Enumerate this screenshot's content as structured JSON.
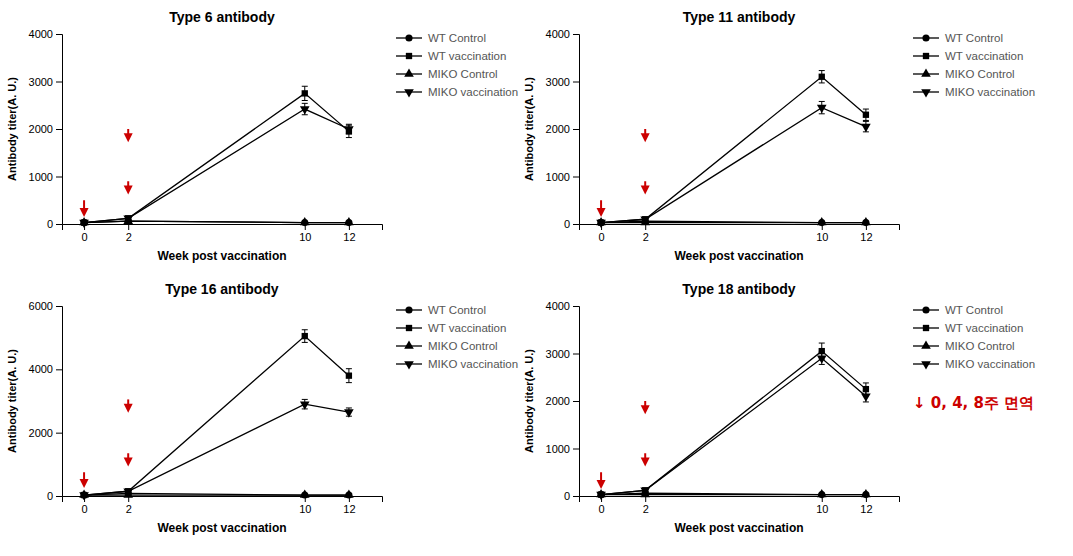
{
  "chart_data": [
    {
      "type": "line",
      "title": "Type 6 antibody",
      "xlabel": "Week post vaccination",
      "ylabel": "Antibody titer(A. U.)",
      "x": [
        0,
        2,
        10,
        12
      ],
      "xlim": [
        -1.0,
        13.5
      ],
      "xticks": [
        0,
        2,
        10,
        12
      ],
      "ylim": [
        0,
        4000
      ],
      "yticks": [
        0,
        1000,
        2000,
        3000,
        4000
      ],
      "grid": false,
      "legend": "right",
      "series": [
        {
          "name": "WT Control",
          "marker": "circle",
          "color": "#000000",
          "values": [
            30,
            60,
            30,
            30
          ],
          "errors": [
            15,
            15,
            15,
            15
          ]
        },
        {
          "name": "WT vaccination",
          "marker": "square",
          "color": "#000000",
          "values": [
            30,
            120,
            2750,
            1950
          ],
          "errors": [
            15,
            25,
            150,
            130
          ]
        },
        {
          "name": "MIKO Control",
          "marker": "triangle-up",
          "color": "#000000",
          "values": [
            30,
            60,
            30,
            30
          ],
          "errors": [
            15,
            15,
            15,
            15
          ]
        },
        {
          "name": "MIKO vaccination",
          "marker": "triangle-down",
          "color": "#000000",
          "values": [
            30,
            120,
            2420,
            2000
          ],
          "errors": [
            15,
            25,
            120,
            100
          ]
        }
      ],
      "arrows": {
        "x": [
          0,
          2,
          2
        ],
        "y": [
          500,
          900,
          2000
        ],
        "size": [
          350,
          280,
          280
        ],
        "color": "#cc0000"
      }
    },
    {
      "type": "line",
      "title": "Type 11 antibody",
      "xlabel": "Week post vaccination",
      "ylabel": "Antibody titer(A. U.)",
      "x": [
        0,
        2,
        10,
        12
      ],
      "xlim": [
        -1.0,
        13.5
      ],
      "xticks": [
        0,
        2,
        10,
        12
      ],
      "ylim": [
        0,
        4000
      ],
      "yticks": [
        0,
        1000,
        2000,
        3000,
        4000
      ],
      "grid": false,
      "legend": "right",
      "series": [
        {
          "name": "WT Control",
          "marker": "circle",
          "color": "#000000",
          "values": [
            30,
            60,
            30,
            30
          ],
          "errors": [
            15,
            15,
            15,
            15
          ]
        },
        {
          "name": "WT vaccination",
          "marker": "square",
          "color": "#000000",
          "values": [
            30,
            100,
            3100,
            2300
          ],
          "errors": [
            15,
            25,
            130,
            120
          ]
        },
        {
          "name": "MIKO Control",
          "marker": "triangle-up",
          "color": "#000000",
          "values": [
            30,
            30,
            30,
            30
          ],
          "errors": [
            15,
            15,
            15,
            15
          ]
        },
        {
          "name": "MIKO vaccination",
          "marker": "triangle-down",
          "color": "#000000",
          "values": [
            30,
            100,
            2450,
            2050
          ],
          "errors": [
            15,
            25,
            130,
            110
          ]
        }
      ],
      "arrows": {
        "x": [
          0,
          2,
          2
        ],
        "y": [
          500,
          900,
          2000
        ],
        "size": [
          350,
          280,
          280
        ],
        "color": "#cc0000"
      }
    },
    {
      "type": "line",
      "title": "Type 16 antibody",
      "xlabel": "Week post vaccination",
      "ylabel": "Antibody titer(A. U.)",
      "x": [
        0,
        2,
        10,
        12
      ],
      "xlim": [
        -1.0,
        13.5
      ],
      "xticks": [
        0,
        2,
        10,
        12
      ],
      "ylim": [
        0,
        6000
      ],
      "yticks": [
        0,
        2000,
        4000,
        6000
      ],
      "grid": false,
      "legend": "right",
      "series": [
        {
          "name": "WT Control",
          "marker": "circle",
          "color": "#000000",
          "values": [
            30,
            80,
            30,
            30
          ],
          "errors": [
            15,
            15,
            15,
            15
          ]
        },
        {
          "name": "WT vaccination",
          "marker": "square",
          "color": "#000000",
          "values": [
            30,
            150,
            5050,
            3800
          ],
          "errors": [
            15,
            25,
            200,
            220
          ]
        },
        {
          "name": "MIKO Control",
          "marker": "triangle-up",
          "color": "#000000",
          "values": [
            30,
            30,
            30,
            30
          ],
          "errors": [
            15,
            15,
            15,
            15
          ]
        },
        {
          "name": "MIKO vaccination",
          "marker": "triangle-down",
          "color": "#000000",
          "values": [
            30,
            150,
            2900,
            2650
          ],
          "errors": [
            15,
            25,
            150,
            130
          ]
        }
      ],
      "arrows": {
        "x": [
          0,
          2,
          2
        ],
        "y": [
          750,
          1350,
          3050
        ],
        "size": [
          500,
          420,
          420
        ],
        "color": "#cc0000"
      }
    },
    {
      "type": "line",
      "title": "Type 18 antibody",
      "xlabel": "Week post vaccination",
      "ylabel": "Antibody titer(A. U.)",
      "x": [
        0,
        2,
        10,
        12
      ],
      "xlim": [
        -1.0,
        13.5
      ],
      "xticks": [
        0,
        2,
        10,
        12
      ],
      "ylim": [
        0,
        4000
      ],
      "yticks": [
        0,
        1000,
        2000,
        3000,
        4000
      ],
      "grid": false,
      "legend": "right",
      "series": [
        {
          "name": "WT Control",
          "marker": "circle",
          "color": "#000000",
          "values": [
            30,
            60,
            30,
            30
          ],
          "errors": [
            15,
            15,
            15,
            15
          ]
        },
        {
          "name": "WT vaccination",
          "marker": "square",
          "color": "#000000",
          "values": [
            30,
            120,
            3050,
            2250
          ],
          "errors": [
            15,
            25,
            170,
            130
          ]
        },
        {
          "name": "MIKO Control",
          "marker": "triangle-up",
          "color": "#000000",
          "values": [
            30,
            30,
            30,
            30
          ],
          "errors": [
            15,
            15,
            15,
            15
          ]
        },
        {
          "name": "MIKO vaccination",
          "marker": "triangle-down",
          "color": "#000000",
          "values": [
            30,
            120,
            2900,
            2100
          ],
          "errors": [
            15,
            25,
            130,
            120
          ]
        }
      ],
      "arrows": {
        "x": [
          0,
          2,
          2
        ],
        "y": [
          500,
          900,
          2000
        ],
        "size": [
          350,
          280,
          280
        ],
        "color": "#cc0000"
      },
      "annotations": [
        {
          "text": "↓ 0, 4, 8주 면역",
          "color": "#cc0000"
        }
      ]
    }
  ]
}
